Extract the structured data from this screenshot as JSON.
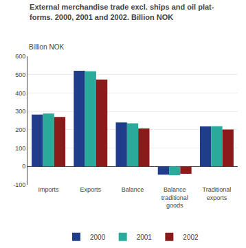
{
  "chart_data": {
    "type": "bar",
    "title": "External merchandise trade excl. ships and oil plat-\nforms. 2000, 2001 and 2002. Billion NOK",
    "ylabel": "Billion NOK",
    "categories": [
      "Imports",
      "Exports",
      "Balance",
      "Balance\ntraditional\ngoods",
      "Traditional\nexports"
    ],
    "series": [
      {
        "name": "2000",
        "color": "#1f3d8a",
        "values": [
          283,
          521,
          240,
          -45,
          218
        ]
      },
      {
        "name": "2001",
        "color": "#2aaa9a",
        "values": [
          288,
          519,
          235,
          -48,
          219
        ]
      },
      {
        "name": "2002",
        "color": "#8b1a1a",
        "values": [
          270,
          474,
          207,
          -40,
          201
        ]
      }
    ],
    "ylim": [
      -100,
      600
    ],
    "yticks": [
      -100,
      0,
      100,
      200,
      300,
      400,
      500,
      600
    ],
    "grid": true,
    "legend": "bottom"
  }
}
